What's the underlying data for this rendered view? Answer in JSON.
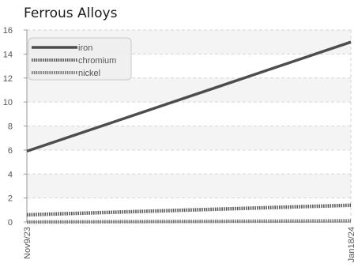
{
  "chart_data": {
    "type": "line",
    "title": "Ferrous Alloys",
    "xlabel": "",
    "ylabel": "",
    "x": [
      "Nov9/23",
      "Jan18/24"
    ],
    "ylim": [
      0,
      16
    ],
    "yticks": [
      0,
      2,
      4,
      6,
      8,
      10,
      12,
      14,
      16
    ],
    "grid": true,
    "legend_position": "top-left",
    "series": [
      {
        "name": "iron",
        "values": [
          5.9,
          15.0
        ],
        "color": "#4d4d4d",
        "style": "solid"
      },
      {
        "name": "chromium",
        "values": [
          0.6,
          1.4
        ],
        "color": "#595959",
        "style": "dotted"
      },
      {
        "name": "nickel",
        "values": [
          0.0,
          0.1
        ],
        "color": "#7a7a7a",
        "style": "dotted"
      }
    ]
  }
}
